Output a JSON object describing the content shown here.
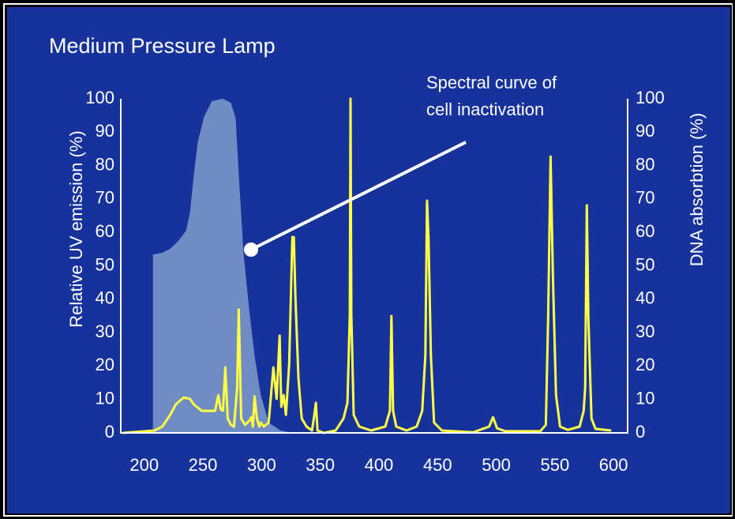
{
  "chart_data": {
    "type": "line",
    "title": "Medium Pressure Lamp",
    "y_label": "Relative UV emission (%)",
    "y2_label": "DNA absorbtion (%)",
    "annotations": [
      "Spectral curve of",
      "cell inactivation"
    ],
    "xlim": [
      180,
      612
    ],
    "xticks": [
      200,
      250,
      300,
      350,
      400,
      450,
      500,
      550,
      600
    ],
    "ylim": [
      0,
      100
    ],
    "yticks": [
      0,
      10,
      20,
      30,
      40,
      50,
      60,
      70,
      80,
      90,
      100
    ],
    "y2lim": [
      0,
      100
    ],
    "y2ticks": [
      0,
      10,
      20,
      30,
      40,
      50,
      60,
      70,
      80,
      90,
      100
    ],
    "series": [
      {
        "kind": "area",
        "axis": "y2",
        "color": "#6f8cc4",
        "x": [
          207.4,
          207.4,
          215.4,
          222.1,
          228.9,
          235.6,
          238.9,
          242.3,
          245.6,
          251.0,
          257.7,
          267.1,
          273.8,
          277.9,
          280.5,
          284.6,
          289.3,
          294.0,
          299.3,
          306.0,
          316.1,
          326.2
        ],
        "values": [
          0,
          53.4,
          53.9,
          55.1,
          57.4,
          60.5,
          65.7,
          77.5,
          87.0,
          94.6,
          99.3,
          100,
          98.8,
          94.1,
          77.5,
          53.9,
          37.4,
          23.2,
          11.3,
          3.1,
          0.7,
          0
        ]
      },
      {
        "kind": "line",
        "axis": "y",
        "color": "#ffff44",
        "x": [
          181.9,
          208.7,
          215.4,
          222.1,
          226.8,
          233.6,
          238.9,
          242.3,
          249.0,
          260.4,
          263.1,
          265.1,
          267.1,
          269.1,
          271.1,
          273.8,
          276.5,
          279.2,
          280.5,
          282.6,
          285.9,
          289.3,
          291.3,
          292.6,
          294.0,
          296.0,
          298.0,
          299.3,
          302.0,
          306.0,
          310.1,
          312.8,
          315.4,
          316.8,
          318.8,
          320.8,
          323.5,
          326.2,
          327.5,
          328.9,
          331.5,
          334.2,
          338.3,
          343.0,
          345.0,
          346.3,
          347.7,
          353.0,
          363.1,
          369.8,
          373.2,
          375.2,
          375.8,
          376.5,
          378.5,
          383.2,
          393.3,
          405.4,
          409.4,
          410.7,
          412.1,
          414.8,
          423.5,
          432.2,
          436.9,
          439.6,
          441.0,
          442.3,
          444.3,
          447.0,
          453.7,
          480.5,
          494.0,
          497.3,
          500.7,
          507.4,
          537.6,
          542.3,
          544.3,
          546.3,
          548.3,
          551.0,
          554.4,
          561.1,
          571.1,
          574.5,
          575.8,
          577.2,
          578.5,
          581.2,
          584.6,
          598.0
        ],
        "values": [
          0,
          0.7,
          1.9,
          5.4,
          8.5,
          10.6,
          10.2,
          8.5,
          6.6,
          6.6,
          11.3,
          7.1,
          6.6,
          19.6,
          4.3,
          2.4,
          1.9,
          13.5,
          36.9,
          4.3,
          2.4,
          3.5,
          4.7,
          1.9,
          10.9,
          4.3,
          1.9,
          3.1,
          1.9,
          3.1,
          19.6,
          10.2,
          29.1,
          7.8,
          11.3,
          5.4,
          20.6,
          58.6,
          58.6,
          39.7,
          16.1,
          4.3,
          1.9,
          0.7,
          5.4,
          9.0,
          0.7,
          0,
          0.7,
          4.3,
          9.0,
          35.5,
          100,
          35.5,
          5.4,
          1.9,
          0.7,
          1.9,
          6.6,
          35.0,
          6.6,
          1.9,
          0.7,
          1.9,
          6.6,
          23.2,
          69.5,
          58.2,
          23.2,
          3.1,
          0.7,
          0.2,
          1.9,
          4.7,
          1.4,
          0.5,
          0.5,
          2.4,
          35.5,
          82.7,
          47.3,
          11.3,
          1.9,
          0.9,
          1.9,
          6.6,
          13.5,
          68.1,
          35.0,
          4.3,
          1.2,
          0.7
        ]
      }
    ]
  }
}
